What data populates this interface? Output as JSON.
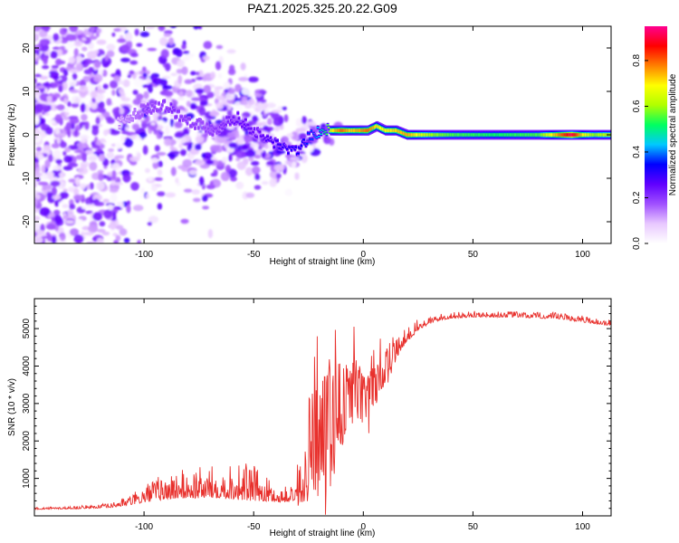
{
  "title": "PAZ1.2025.325.20.22.G09",
  "chart_data": [
    {
      "type": "heatmap",
      "title": "PAZ1.2025.325.20.22.G09",
      "xlabel": "Height of straight line (km)",
      "ylabel": "Frequency (Hz)",
      "xlim": [
        -150,
        113
      ],
      "ylim": [
        -25,
        25
      ],
      "xticks": [
        -100,
        -50,
        0,
        50,
        100
      ],
      "xtick_labels": [
        "-100",
        "-50",
        "0",
        "50",
        "100"
      ],
      "yticks": [
        -20,
        -10,
        0,
        10,
        20
      ],
      "ytick_labels": [
        "-20",
        "-10",
        "0",
        "10",
        "20"
      ],
      "colorbar": {
        "label": "Normalized spectral amplitude",
        "range": [
          0,
          0.95
        ],
        "ticks": [
          0,
          0.2,
          0.4,
          0.6,
          0.8
        ],
        "tick_labels": [
          "0.0",
          "0.2",
          "0.4",
          "0.6",
          "0.8"
        ],
        "colors": [
          "#ffffff",
          "#e8c8ff",
          "#a050ff",
          "#6000ff",
          "#0000ff",
          "#00c8ff",
          "#00ff60",
          "#b0ff00",
          "#ffff00",
          "#ff8000",
          "#ff0000",
          "#ff0090"
        ]
      },
      "ridge": {
        "x": [
          -150,
          -110,
          -100,
          -92,
          -88,
          -83,
          -78,
          -73,
          -68,
          -63,
          -58,
          -53,
          -48,
          -44,
          -40,
          -36,
          -32,
          -29,
          -26,
          -23,
          -20,
          -17,
          -14,
          -10,
          -6,
          -2,
          2,
          6,
          10,
          15,
          20,
          30,
          40,
          60,
          80,
          95,
          100,
          105,
          110,
          113
        ],
        "y": [
          3,
          3,
          6,
          7,
          6,
          4,
          3,
          2,
          1,
          3,
          4,
          2,
          0,
          -1,
          -2,
          -3,
          -4,
          -3,
          -1,
          0,
          1,
          1,
          1,
          1,
          1,
          1,
          1,
          2,
          1,
          1,
          0,
          0,
          0,
          0,
          0,
          0,
          0,
          0,
          0,
          0
        ],
        "amp": [
          0.1,
          0.1,
          0.18,
          0.2,
          0.22,
          0.2,
          0.2,
          0.18,
          0.2,
          0.22,
          0.25,
          0.25,
          0.25,
          0.28,
          0.3,
          0.32,
          0.33,
          0.34,
          0.36,
          0.38,
          0.45,
          0.55,
          0.7,
          0.8,
          0.72,
          0.75,
          0.8,
          0.7,
          0.68,
          0.72,
          0.75,
          0.6,
          0.55,
          0.52,
          0.55,
          0.92,
          0.7,
          0.58,
          0.62,
          0.6
        ]
      }
    },
    {
      "type": "line",
      "xlabel": "Height of straight line (km)",
      "ylabel": "SNR (10 * v/v)",
      "xlim": [
        -150,
        113
      ],
      "ylim": [
        0,
        5800
      ],
      "xticks": [
        -100,
        -50,
        0,
        50,
        100
      ],
      "xtick_labels": [
        "-100",
        "-50",
        "0",
        "50",
        "100"
      ],
      "yticks": [
        1000,
        2000,
        3000,
        4000,
        5000
      ],
      "ytick_labels": [
        "1000",
        "2000",
        "3000",
        "4000",
        "5000"
      ],
      "line_color": "#e8302c",
      "envelope": {
        "x": [
          -150,
          -130,
          -115,
          -105,
          -95,
          -85,
          -75,
          -65,
          -58,
          -52,
          -45,
          -38,
          -32,
          -28,
          -25,
          -22,
          -18,
          -15,
          -12,
          -9,
          -6,
          -3,
          0,
          5,
          10,
          15,
          20,
          25,
          30,
          35,
          40,
          50,
          60,
          70,
          80,
          90,
          100,
          110,
          113
        ],
        "base": [
          180,
          200,
          240,
          350,
          500,
          580,
          600,
          620,
          600,
          560,
          500,
          420,
          450,
          900,
          1800,
          2000,
          2100,
          2300,
          2700,
          3000,
          3200,
          3300,
          3200,
          3500,
          3900,
          4300,
          4700,
          5000,
          5150,
          5250,
          5300,
          5330,
          5330,
          5330,
          5300,
          5280,
          5200,
          5120,
          5100
        ],
        "spread": [
          30,
          40,
          60,
          150,
          320,
          380,
          420,
          450,
          550,
          520,
          350,
          200,
          250,
          600,
          1400,
          1500,
          1600,
          1700,
          1500,
          1000,
          1000,
          900,
          700,
          600,
          500,
          300,
          200,
          150,
          100,
          90,
          80,
          80,
          80,
          80,
          80,
          90,
          90,
          80,
          80
        ]
      }
    }
  ]
}
